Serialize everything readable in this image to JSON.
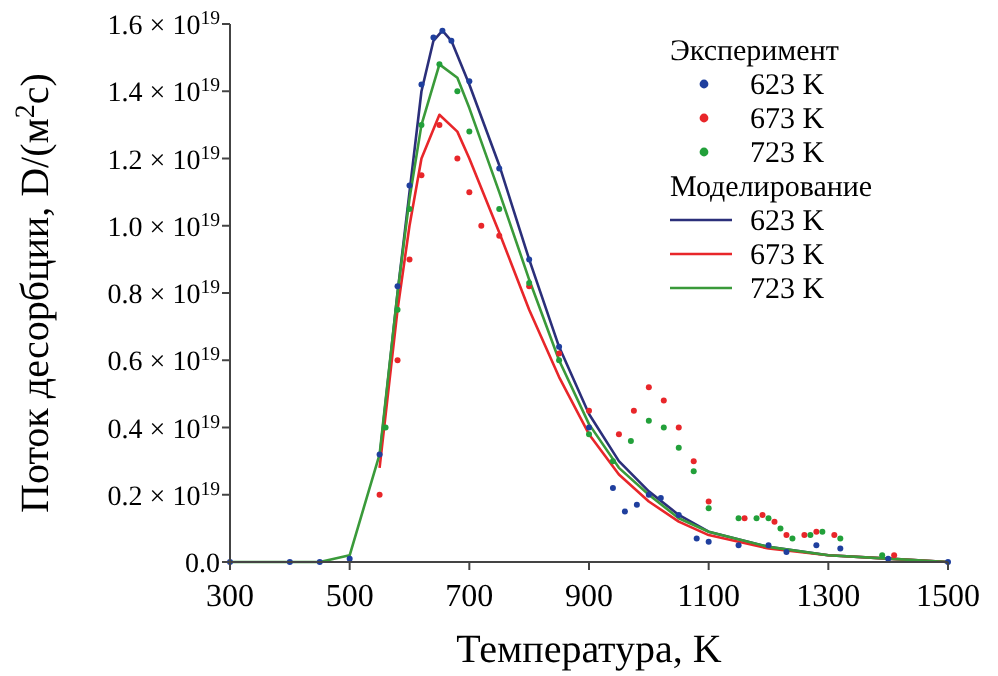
{
  "chart_data": {
    "type": "line",
    "xlabel": "Температура, K",
    "ylabel": "Поток десорбции, D/(м$^{2}$с)",
    "annotations": [
      "Эксперимент",
      "Моделирование"
    ],
    "xlim": [
      300,
      1500
    ],
    "xticks": [
      300,
      500,
      700,
      900,
      1100,
      1300,
      1500
    ],
    "ylim": [
      0,
      1.6e+19
    ],
    "yticks": [
      {
        "value": 0,
        "label": "0.0"
      },
      {
        "value": 2e+18,
        "label": "0.2 × 10$^{19}$"
      },
      {
        "value": 4e+18,
        "label": "0.4 × 10$^{19}$"
      },
      {
        "value": 6e+18,
        "label": "0.6 × 10$^{19}$"
      },
      {
        "value": 8e+18,
        "label": "0.8 × 10$^{19}$"
      },
      {
        "value": 1e+19,
        "label": "1.0 × 10$^{19}$"
      },
      {
        "value": 1.2e+19,
        "label": "1.2 × 10$^{19}$"
      },
      {
        "value": 1.4e+19,
        "label": "1.4 × 10$^{19}$"
      },
      {
        "value": 1.6e+19,
        "label": "1.6 × 10$^{19}$"
      }
    ],
    "legend": "top right",
    "grid": false,
    "series": [
      {
        "name": "623 K",
        "type": "scatter",
        "marker": "circle",
        "color": "#1f3f9e",
        "x": [
          300,
          400,
          450,
          500,
          550,
          580,
          600,
          620,
          640,
          655,
          670,
          700,
          750,
          800,
          850,
          900,
          940,
          960,
          980,
          1000,
          1020,
          1050,
          1080,
          1100,
          1150,
          1200,
          1230,
          1280,
          1320,
          1400,
          1500
        ],
        "values": [
          0,
          0,
          0,
          1e+17,
          3.2e+18,
          8.2e+18,
          1.12e+19,
          1.42e+19,
          1.56e+19,
          1.58e+19,
          1.55e+19,
          1.43e+19,
          1.17e+19,
          9e+18,
          6.4e+18,
          4e+18,
          2.2e+18,
          1.5e+18,
          1.7e+18,
          2e+18,
          1.9e+18,
          1.4e+18,
          7e+17,
          6e+17,
          5e+17,
          5e+17,
          3e+17,
          5e+17,
          4e+17,
          1e+17,
          0
        ]
      },
      {
        "name": "673 K",
        "type": "scatter",
        "marker": "circle",
        "color": "#e8262a",
        "x": [
          550,
          580,
          600,
          620,
          650,
          680,
          700,
          720,
          750,
          800,
          850,
          900,
          950,
          975,
          1000,
          1025,
          1050,
          1075,
          1100,
          1160,
          1190,
          1210,
          1230,
          1260,
          1280,
          1310,
          1410
        ],
        "values": [
          2e+18,
          6e+18,
          9e+18,
          1.15e+19,
          1.3e+19,
          1.2e+19,
          1.1e+19,
          1e+19,
          9.7e+18,
          8.2e+18,
          6.2e+18,
          4.5e+18,
          3.8e+18,
          4.5e+18,
          5.2e+18,
          4.8e+18,
          4e+18,
          3e+18,
          1.8e+18,
          1.3e+18,
          1.4e+18,
          1.2e+18,
          8e+17,
          8e+17,
          9e+17,
          8e+17,
          2e+17
        ]
      },
      {
        "name": "723 K",
        "type": "scatter",
        "marker": "circle",
        "color": "#22a03a",
        "x": [
          560,
          580,
          600,
          620,
          650,
          680,
          700,
          750,
          800,
          850,
          900,
          940,
          970,
          1000,
          1025,
          1050,
          1075,
          1100,
          1150,
          1180,
          1200,
          1220,
          1240,
          1270,
          1290,
          1320,
          1390
        ],
        "values": [
          4e+18,
          7.5e+18,
          1.05e+19,
          1.3e+19,
          1.48e+19,
          1.4e+19,
          1.28e+19,
          1.05e+19,
          8.3e+18,
          6e+18,
          3.8e+18,
          3e+18,
          3.6e+18,
          4.2e+18,
          4e+18,
          3.4e+18,
          2.7e+18,
          1.6e+18,
          1.3e+18,
          1.3e+18,
          1.3e+18,
          1e+18,
          7e+17,
          8e+17,
          9e+17,
          7e+17,
          2e+17
        ]
      },
      {
        "name": "623 K",
        "color": "#2b2f7a",
        "x": [
          550,
          580,
          600,
          620,
          640,
          655,
          670,
          700,
          750,
          800,
          850,
          900,
          950,
          1000,
          1050,
          1100,
          1200,
          1300,
          1400,
          1500
        ],
        "values": [
          3.1e+18,
          8e+18,
          1.1e+19,
          1.4e+19,
          1.55e+19,
          1.58e+19,
          1.55e+19,
          1.42e+19,
          1.18e+19,
          9e+18,
          6.4e+18,
          4.4e+18,
          3e+18,
          2.1e+18,
          1.4e+18,
          9e+17,
          4.5e+17,
          2e+17,
          1e+17,
          0
        ]
      },
      {
        "name": "673 K",
        "color": "#e8262a",
        "x": [
          550,
          580,
          600,
          620,
          650,
          680,
          700,
          750,
          800,
          850,
          900,
          950,
          1000,
          1050,
          1100,
          1200,
          1300,
          1400,
          1500
        ],
        "values": [
          2.8e+18,
          7.5e+18,
          1e+19,
          1.2e+19,
          1.33e+19,
          1.28e+19,
          1.2e+19,
          9.8e+18,
          7.5e+18,
          5.5e+18,
          3.8e+18,
          2.6e+18,
          1.8e+18,
          1.2e+18,
          8e+17,
          4e+17,
          2e+17,
          1e+17,
          0
        ]
      },
      {
        "name": "723 K",
        "color": "#3a9a3a",
        "x": [
          300,
          450,
          500,
          550,
          580,
          600,
          620,
          650,
          680,
          700,
          750,
          800,
          850,
          900,
          950,
          1000,
          1050,
          1100,
          1200,
          1300,
          1400,
          1500
        ],
        "values": [
          0,
          0,
          2e+17,
          3.2e+18,
          8e+18,
          1.08e+19,
          1.3e+19,
          1.48e+19,
          1.44e+19,
          1.35e+19,
          1.1e+19,
          8.4e+18,
          6e+18,
          4.1e+18,
          2.8e+18,
          2e+18,
          1.3e+18,
          9e+17,
          4.5e+17,
          2e+17,
          1e+17,
          0
        ]
      }
    ]
  }
}
